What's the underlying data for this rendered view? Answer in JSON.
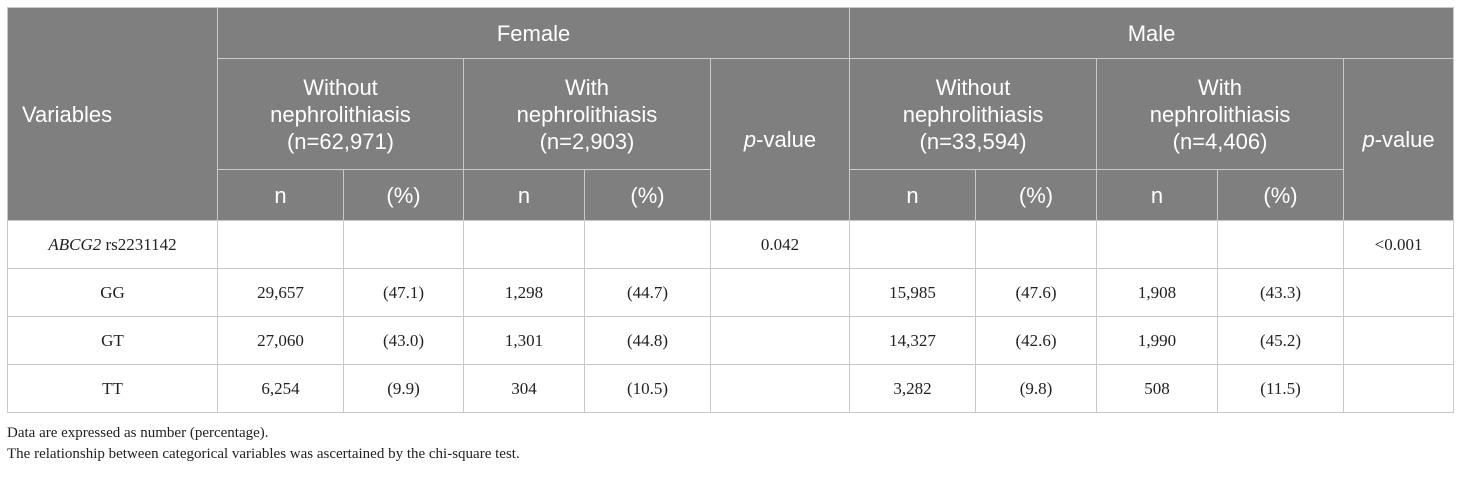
{
  "header": {
    "variables": "Variables",
    "female": "Female",
    "male": "Male",
    "without_line1": "Without",
    "without_line2": "nephrolithiasis",
    "with_line1": "With",
    "with_line2": "nephrolithiasis",
    "female_without_n": "(n=62,971)",
    "female_with_n": "(n=2,903)",
    "male_without_n": "(n=33,594)",
    "male_with_n": "(n=4,406)",
    "p_italic": "p",
    "p_suffix": "-value",
    "n_label": "n",
    "pct_label": "(%)"
  },
  "rows": [
    {
      "var_italic": "ABCG2",
      "var_rest": " rs2231142",
      "f_wo_n": "",
      "f_wo_pct": "",
      "f_w_n": "",
      "f_w_pct": "",
      "f_p": "0.042",
      "m_wo_n": "",
      "m_wo_pct": "",
      "m_w_n": "",
      "m_w_pct": "",
      "m_p": "<0.001"
    },
    {
      "var_italic": "",
      "var_rest": "GG",
      "f_wo_n": "29,657",
      "f_wo_pct": "(47.1)",
      "f_w_n": "1,298",
      "f_w_pct": "(44.7)",
      "f_p": "",
      "m_wo_n": "15,985",
      "m_wo_pct": "(47.6)",
      "m_w_n": "1,908",
      "m_w_pct": "(43.3)",
      "m_p": ""
    },
    {
      "var_italic": "",
      "var_rest": "GT",
      "f_wo_n": "27,060",
      "f_wo_pct": "(43.0)",
      "f_w_n": "1,301",
      "f_w_pct": "(44.8)",
      "f_p": "",
      "m_wo_n": "14,327",
      "m_wo_pct": "(42.6)",
      "m_w_n": "1,990",
      "m_w_pct": "(45.2)",
      "m_p": ""
    },
    {
      "var_italic": "",
      "var_rest": "TT",
      "f_wo_n": "6,254",
      "f_wo_pct": "(9.9)",
      "f_w_n": "304",
      "f_w_pct": "(10.5)",
      "f_p": "",
      "m_wo_n": "3,282",
      "m_wo_pct": "(9.8)",
      "m_w_n": "508",
      "m_w_pct": "(11.5)",
      "m_p": ""
    }
  ],
  "notes": {
    "line1": "Data are expressed as number (percentage).",
    "line2": "The relationship between categorical variables was ascertained by the chi-square test."
  }
}
